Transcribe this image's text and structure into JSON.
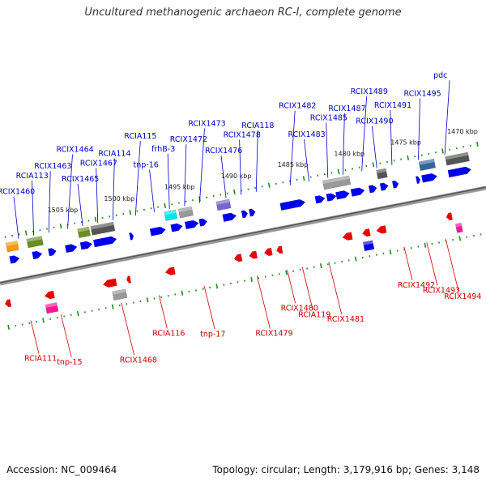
{
  "title": "Uncultured methanogenic archaeon RC-I, complete genome",
  "accession": "Accession: NC_009464",
  "topology": "Topology: circular; Length: 3,179,916 bp; Genes: 3,148",
  "colors": {
    "blue": "#0000ee",
    "red": "#ee0000",
    "orange": "#ff9900",
    "olive": "#6b8e23",
    "gray": "#999999",
    "darkgray": "#555555",
    "cyan": "#00e5ee",
    "purple": "#7766cc",
    "steelblue": "#336699",
    "magenta": "#ff1493",
    "tick": "#228b22",
    "blue_label": "#0000cc",
    "red_label": "#cc0000"
  },
  "ruler_labels": [
    {
      "t": 0.19,
      "text": "1505 kbp"
    },
    {
      "t": 0.34,
      "text": "1500 kbp"
    },
    {
      "t": 0.5,
      "text": "1495 kbp"
    },
    {
      "t": 0.65,
      "text": "1490 kbp"
    },
    {
      "t": 0.8,
      "text": "1485 kbp"
    },
    {
      "t": 0.95,
      "text": "1480 kbp"
    },
    {
      "t": 1.1,
      "text": "1475 kbp"
    },
    {
      "t": 1.25,
      "text": "1470 kbp"
    }
  ],
  "upper_labels": [
    {
      "text": "RCIX1460",
      "t": 0.07
    },
    {
      "text": "RCIA113",
      "t": 0.11
    },
    {
      "text": "RCIX1463",
      "t": 0.15
    },
    {
      "text": "RCIX1464",
      "t": 0.2
    },
    {
      "text": "RCIX1465",
      "t": 0.24
    },
    {
      "text": "RCIX1467",
      "t": 0.28
    },
    {
      "text": "RCIA114",
      "t": 0.32
    },
    {
      "text": "RCIA115",
      "t": 0.38
    },
    {
      "text": "tnp-16",
      "t": 0.43
    },
    {
      "text": "frhB-3",
      "t": 0.47
    },
    {
      "text": "RCIX1472",
      "t": 0.51
    },
    {
      "text": "RCIX1473",
      "t": 0.55
    },
    {
      "text": "RCIX1476",
      "t": 0.62
    },
    {
      "text": "RCIX1478",
      "t": 0.66
    },
    {
      "text": "RCIA118",
      "t": 0.7
    },
    {
      "text": "RCIX1482",
      "t": 0.79
    },
    {
      "text": "RCIX1483",
      "t": 0.84
    },
    {
      "text": "RCIX1485",
      "t": 0.89
    },
    {
      "text": "RCIX1487",
      "t": 0.93
    },
    {
      "text": "RCIX1489",
      "t": 0.98
    },
    {
      "text": "RCIX1490",
      "t": 1.02
    },
    {
      "text": "RCIX1491",
      "t": 1.06
    },
    {
      "text": "RCIX1495",
      "t": 1.13
    },
    {
      "text": "pdc",
      "t": 1.2
    }
  ],
  "lower_labels": [
    {
      "text": "RCIA111",
      "t": 0.06
    },
    {
      "text": "tnp-15",
      "t": 0.14
    },
    {
      "text": "RCIX1468",
      "t": 0.3
    },
    {
      "text": "RCIA116",
      "t": 0.4
    },
    {
      "text": "tnp-17",
      "t": 0.52
    },
    {
      "text": "RCIX1479",
      "t": 0.66
    },
    {
      "text": "RCIX1480",
      "t": 0.74
    },
    {
      "text": "RCIA119",
      "t": 0.78
    },
    {
      "text": "RCIX1481",
      "t": 0.85
    },
    {
      "text": "RCIX1492",
      "t": 1.05
    },
    {
      "text": "RCIX1493",
      "t": 1.11
    },
    {
      "text": "RCIX1494",
      "t": 1.16
    }
  ],
  "genes": [
    {
      "t": 0.05,
      "strand": 1,
      "color": "orange",
      "type": "box",
      "len": 0.03
    },
    {
      "t": 0.05,
      "strand": 1,
      "color": "blue",
      "type": "arrow",
      "dir": 1,
      "len": 0.025
    },
    {
      "t": 0.11,
      "strand": 1,
      "color": "olive",
      "type": "box",
      "len": 0.04
    },
    {
      "t": 0.11,
      "strand": 1,
      "color": "blue",
      "type": "arrow",
      "dir": 1,
      "len": 0.025
    },
    {
      "t": 0.15,
      "strand": 1,
      "color": "blue",
      "type": "arrow",
      "dir": 1,
      "len": 0.02
    },
    {
      "t": 0.2,
      "strand": 1,
      "color": "blue",
      "type": "arrow",
      "dir": 1,
      "len": 0.03
    },
    {
      "t": 0.24,
      "strand": 1,
      "color": "olive",
      "type": "box",
      "len": 0.03
    },
    {
      "t": 0.24,
      "strand": 1,
      "color": "blue",
      "type": "arrow",
      "dir": 1,
      "len": 0.03
    },
    {
      "t": 0.29,
      "strand": 1,
      "color": "darkgray",
      "type": "box",
      "len": 0.06
    },
    {
      "t": 0.29,
      "strand": 1,
      "color": "blue",
      "type": "arrow",
      "dir": 1,
      "len": 0.06
    },
    {
      "t": 0.36,
      "strand": 1,
      "color": "blue",
      "type": "arrow",
      "dir": 1,
      "len": 0.01
    },
    {
      "t": 0.43,
      "strand": 1,
      "color": "blue",
      "type": "arrow",
      "dir": 1,
      "len": 0.04
    },
    {
      "t": 0.47,
      "strand": 1,
      "color": "cyan",
      "type": "box",
      "len": 0.03
    },
    {
      "t": 0.48,
      "strand": 1,
      "color": "blue",
      "type": "arrow",
      "dir": 1,
      "len": 0.03
    },
    {
      "t": 0.51,
      "strand": 1,
      "color": "gray",
      "type": "box",
      "len": 0.035
    },
    {
      "t": 0.52,
      "strand": 1,
      "color": "blue",
      "type": "arrow",
      "dir": 1,
      "len": 0.035
    },
    {
      "t": 0.55,
      "strand": 1,
      "color": "blue",
      "type": "arrow",
      "dir": 1,
      "len": 0.02
    },
    {
      "t": 0.61,
      "strand": 1,
      "color": "purple",
      "type": "box",
      "len": 0.035
    },
    {
      "t": 0.62,
      "strand": 1,
      "color": "blue",
      "type": "arrow",
      "dir": 1,
      "len": 0.035
    },
    {
      "t": 0.66,
      "strand": 1,
      "color": "blue",
      "type": "arrow",
      "dir": 1,
      "len": 0.015
    },
    {
      "t": 0.68,
      "strand": 1,
      "color": "blue",
      "type": "arrow",
      "dir": 1,
      "len": 0.015
    },
    {
      "t": 0.76,
      "strand": 1,
      "color": "blue",
      "type": "arrow",
      "dir": 1,
      "len": 0.01
    },
    {
      "t": 0.79,
      "strand": 1,
      "color": "blue",
      "type": "arrow",
      "dir": 1,
      "len": 0.06
    },
    {
      "t": 0.86,
      "strand": 1,
      "color": "blue",
      "type": "arrow",
      "dir": 1,
      "len": 0.025
    },
    {
      "t": 0.89,
      "strand": 1,
      "color": "blue",
      "type": "arrow",
      "dir": 1,
      "len": 0.025
    },
    {
      "t": 0.91,
      "strand": 1,
      "color": "gray",
      "type": "box",
      "len": 0.07
    },
    {
      "t": 0.92,
      "strand": 1,
      "color": "blue",
      "type": "arrow",
      "dir": 1,
      "len": 0.035
    },
    {
      "t": 0.96,
      "strand": 1,
      "color": "blue",
      "type": "arrow",
      "dir": 1,
      "len": 0.035
    },
    {
      "t": 1.0,
      "strand": 1,
      "color": "blue",
      "type": "arrow",
      "dir": 1,
      "len": 0.02
    },
    {
      "t": 1.03,
      "strand": 1,
      "color": "darkgray",
      "type": "box",
      "len": 0.025
    },
    {
      "t": 1.03,
      "strand": 1,
      "color": "blue",
      "type": "arrow",
      "dir": 1,
      "len": 0.02
    },
    {
      "t": 1.06,
      "strand": 1,
      "color": "blue",
      "type": "arrow",
      "dir": 1,
      "len": 0.015
    },
    {
      "t": 1.12,
      "strand": 1,
      "color": "blue",
      "type": "arrow",
      "dir": 1,
      "len": 0.01
    },
    {
      "t": 1.15,
      "strand": 1,
      "color": "steelblue",
      "type": "box",
      "len": 0.04
    },
    {
      "t": 1.15,
      "strand": 1,
      "color": "blue",
      "type": "arrow",
      "dir": 1,
      "len": 0.04
    },
    {
      "t": 1.23,
      "strand": 1,
      "color": "darkgray",
      "type": "box",
      "len": 0.06
    },
    {
      "t": 1.23,
      "strand": 1,
      "color": "blue",
      "type": "arrow",
      "dir": 1,
      "len": 0.06
    },
    {
      "t": 0.01,
      "strand": -1,
      "color": "red",
      "type": "arrow",
      "dir": -1,
      "len": 0.015
    },
    {
      "t": 0.12,
      "strand": -1,
      "color": "red",
      "type": "arrow",
      "dir": -1,
      "len": 0.025
    },
    {
      "t": 0.12,
      "strand": -1,
      "color": "magenta",
      "type": "box",
      "len": 0.03
    },
    {
      "t": 0.28,
      "strand": -1,
      "color": "red",
      "type": "arrow",
      "dir": -1,
      "len": 0.035
    },
    {
      "t": 0.3,
      "strand": -1,
      "color": "gray",
      "type": "box",
      "len": 0.035
    },
    {
      "t": 0.33,
      "strand": -1,
      "color": "red",
      "type": "arrow",
      "dir": -1,
      "len": 0.01
    },
    {
      "t": 0.44,
      "strand": -1,
      "color": "red",
      "type": "arrow",
      "dir": -1,
      "len": 0.025
    },
    {
      "t": 0.62,
      "strand": -1,
      "color": "red",
      "type": "arrow",
      "dir": -1,
      "len": 0.02
    },
    {
      "t": 0.66,
      "strand": -1,
      "color": "red",
      "type": "arrow",
      "dir": -1,
      "len": 0.02
    },
    {
      "t": 0.7,
      "strand": -1,
      "color": "red",
      "type": "arrow",
      "dir": -1,
      "len": 0.02
    },
    {
      "t": 0.73,
      "strand": -1,
      "color": "red",
      "type": "arrow",
      "dir": -1,
      "len": 0.015
    },
    {
      "t": 0.91,
      "strand": -1,
      "color": "red",
      "type": "arrow",
      "dir": -1,
      "len": 0.025
    },
    {
      "t": 0.96,
      "strand": -1,
      "color": "red",
      "type": "arrow",
      "dir": -1,
      "len": 0.02
    },
    {
      "t": 0.96,
      "strand": -1,
      "color": "blue",
      "type": "box",
      "len": 0.025
    },
    {
      "t": 1.0,
      "strand": -1,
      "color": "red",
      "type": "arrow",
      "dir": -1,
      "len": 0.025
    },
    {
      "t": 1.18,
      "strand": -1,
      "color": "red",
      "type": "arrow",
      "dir": -1,
      "len": 0.015
    },
    {
      "t": 1.2,
      "strand": -1,
      "color": "magenta",
      "type": "box",
      "len": 0.015
    }
  ]
}
